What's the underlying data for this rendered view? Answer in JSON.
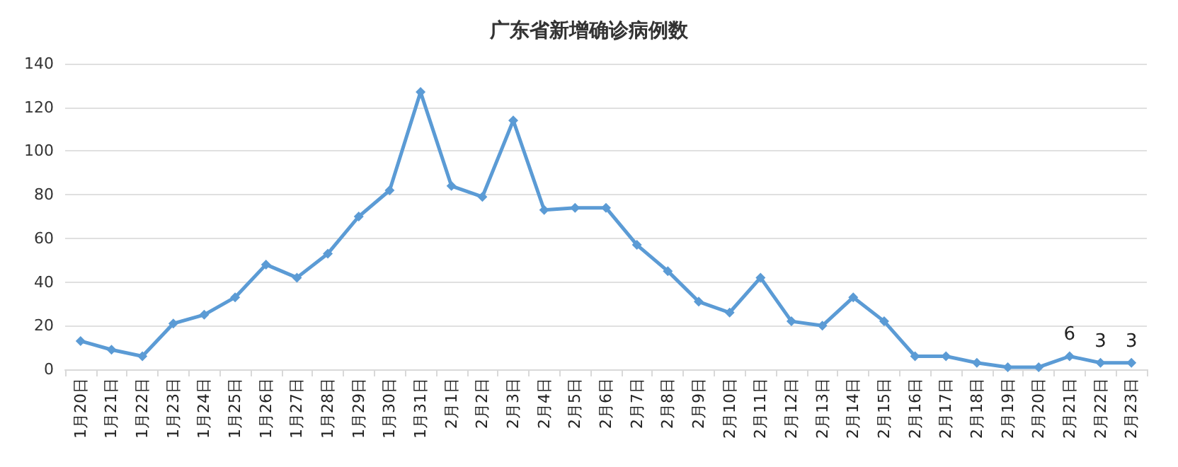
{
  "chart_data": {
    "type": "line",
    "title": "广东省新增确诊病例数",
    "categories": [
      "1月20日",
      "1月21日",
      "1月22日",
      "1月23日",
      "1月24日",
      "1月25日",
      "1月26日",
      "1月27日",
      "1月28日",
      "1月29日",
      "1月30日",
      "1月31日",
      "2月1日",
      "2月2日",
      "2月3日",
      "2月4日",
      "2月5日",
      "2月6日",
      "2月7日",
      "2月8日",
      "2月9日",
      "2月10日",
      "2月11日",
      "2月12日",
      "2月13日",
      "2月14日",
      "2月15日",
      "2月16日",
      "2月17日",
      "2月18日",
      "2月19日",
      "2月20日",
      "2月21日",
      "2月22日",
      "2月23日"
    ],
    "series": [
      {
        "color": "#5b9bd5",
        "values": [
          13,
          9,
          6,
          21,
          25,
          33,
          48,
          42,
          53,
          70,
          82,
          127,
          84,
          79,
          114,
          73,
          74,
          74,
          57,
          45,
          31,
          26,
          42,
          22,
          20,
          33,
          22,
          6,
          6,
          3,
          1,
          1,
          6,
          3,
          3
        ],
        "value_labels": [
          null,
          null,
          null,
          null,
          null,
          null,
          null,
          null,
          null,
          null,
          null,
          null,
          null,
          null,
          null,
          null,
          null,
          null,
          null,
          null,
          null,
          null,
          null,
          null,
          null,
          null,
          null,
          null,
          null,
          null,
          null,
          null,
          "6",
          "3",
          "3"
        ]
      }
    ],
    "ylim": [
      0,
      140
    ],
    "yticks": [
      0,
      20,
      40,
      60,
      80,
      100,
      120,
      140
    ],
    "grid": "y",
    "marker": "diamond",
    "line_style": "solid"
  }
}
